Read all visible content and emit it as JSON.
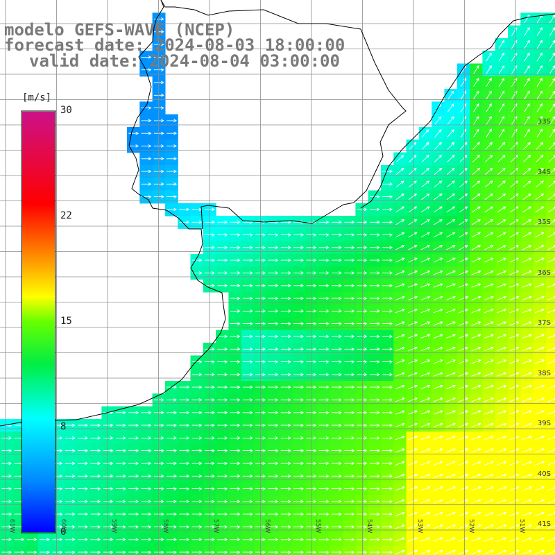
{
  "title": {
    "line1": "modelo GEFS-WAVE (NCEP)",
    "line2": "forecast date: 2024-08-03 18:00:00",
    "line3": "valid date: 2024-08-04 03:00:00"
  },
  "colorbar": {
    "unit": "[m/s]",
    "ticks": [
      "30",
      "22",
      "15",
      "8",
      "0"
    ],
    "tick_values": [
      30,
      22,
      15,
      8,
      0
    ],
    "range": [
      0,
      30
    ]
  },
  "lat_labels": [
    "33S",
    "34S",
    "35S",
    "36S",
    "37S",
    "38S",
    "39S",
    "40S",
    "41S"
  ],
  "lat_values": [
    -33,
    -34,
    -35,
    -36,
    -37,
    -38,
    -39,
    -40,
    -41
  ],
  "lon_labels": [
    "61W",
    "60W",
    "59W",
    "58W",
    "57W",
    "56W",
    "55W",
    "54W",
    "53W",
    "52W",
    "51W"
  ],
  "map": {
    "land_color": "#ffffff",
    "grid_color": "#8c8c8c",
    "coast_color": "#000000",
    "arrow_color": "#ffffff",
    "variable": "wind speed",
    "wind_direction": "mostly eastward, turning north-eastward in the north-east"
  }
}
